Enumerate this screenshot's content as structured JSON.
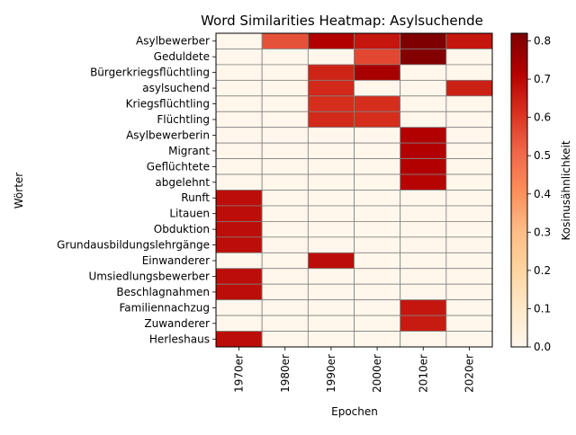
{
  "chart_data": {
    "type": "heatmap",
    "title": "Word Similarities Heatmap: Asylsuchende",
    "xlabel": "Epochen",
    "ylabel": "Wörter",
    "colorbar_label": "Kosinusähnlichkeit",
    "colormap": "OrRd",
    "vmin": 0.0,
    "vmax": 0.82,
    "colorbar_ticks": [
      "0.0",
      "0.1",
      "0.2",
      "0.3",
      "0.4",
      "0.5",
      "0.6",
      "0.7",
      "0.8"
    ],
    "x_categories": [
      "1970er",
      "1980er",
      "1990er",
      "2000er",
      "2010er",
      "2020er"
    ],
    "y_categories": [
      "Asylbewerber",
      "Geduldete",
      "Bürgerkriegsflüchtling",
      "asylsuchend",
      "Kriegsflüchtling",
      "Flüchtling",
      "Asylbewerberin",
      "Migrant",
      "Geflüchtete",
      "abgelehnt",
      "Runft",
      "Litauen",
      "Obduktion",
      "Grundausbildungslehrgänge",
      "Einwanderer",
      "Umsiedlungsbewerber",
      "Beschlagnahmen",
      "Familiennachzug",
      "Zuwanderer",
      "Herleshaus"
    ],
    "values": [
      [
        0,
        0.55,
        0.72,
        0.67,
        0.82,
        0.67
      ],
      [
        0,
        0,
        0,
        0.57,
        0.81,
        0
      ],
      [
        0,
        0,
        0.64,
        0.74,
        0,
        0
      ],
      [
        0,
        0,
        0.63,
        0,
        0,
        0.65
      ],
      [
        0,
        0,
        0.62,
        0.62,
        0,
        0
      ],
      [
        0,
        0,
        0.63,
        0.62,
        0,
        0
      ],
      [
        0,
        0,
        0,
        0,
        0.72,
        0
      ],
      [
        0,
        0,
        0,
        0,
        0.72,
        0
      ],
      [
        0,
        0,
        0,
        0,
        0.72,
        0
      ],
      [
        0,
        0,
        0,
        0,
        0.71,
        0
      ],
      [
        0.69,
        0,
        0,
        0,
        0,
        0
      ],
      [
        0.69,
        0,
        0,
        0,
        0,
        0
      ],
      [
        0.69,
        0,
        0,
        0,
        0,
        0
      ],
      [
        0.69,
        0,
        0,
        0,
        0,
        0
      ],
      [
        0,
        0,
        0.69,
        0,
        0,
        0
      ],
      [
        0.69,
        0,
        0,
        0,
        0,
        0
      ],
      [
        0.69,
        0,
        0,
        0,
        0,
        0
      ],
      [
        0,
        0,
        0,
        0,
        0.67,
        0
      ],
      [
        0,
        0,
        0,
        0,
        0.66,
        0
      ],
      [
        0.69,
        0,
        0,
        0,
        0,
        0
      ]
    ]
  }
}
